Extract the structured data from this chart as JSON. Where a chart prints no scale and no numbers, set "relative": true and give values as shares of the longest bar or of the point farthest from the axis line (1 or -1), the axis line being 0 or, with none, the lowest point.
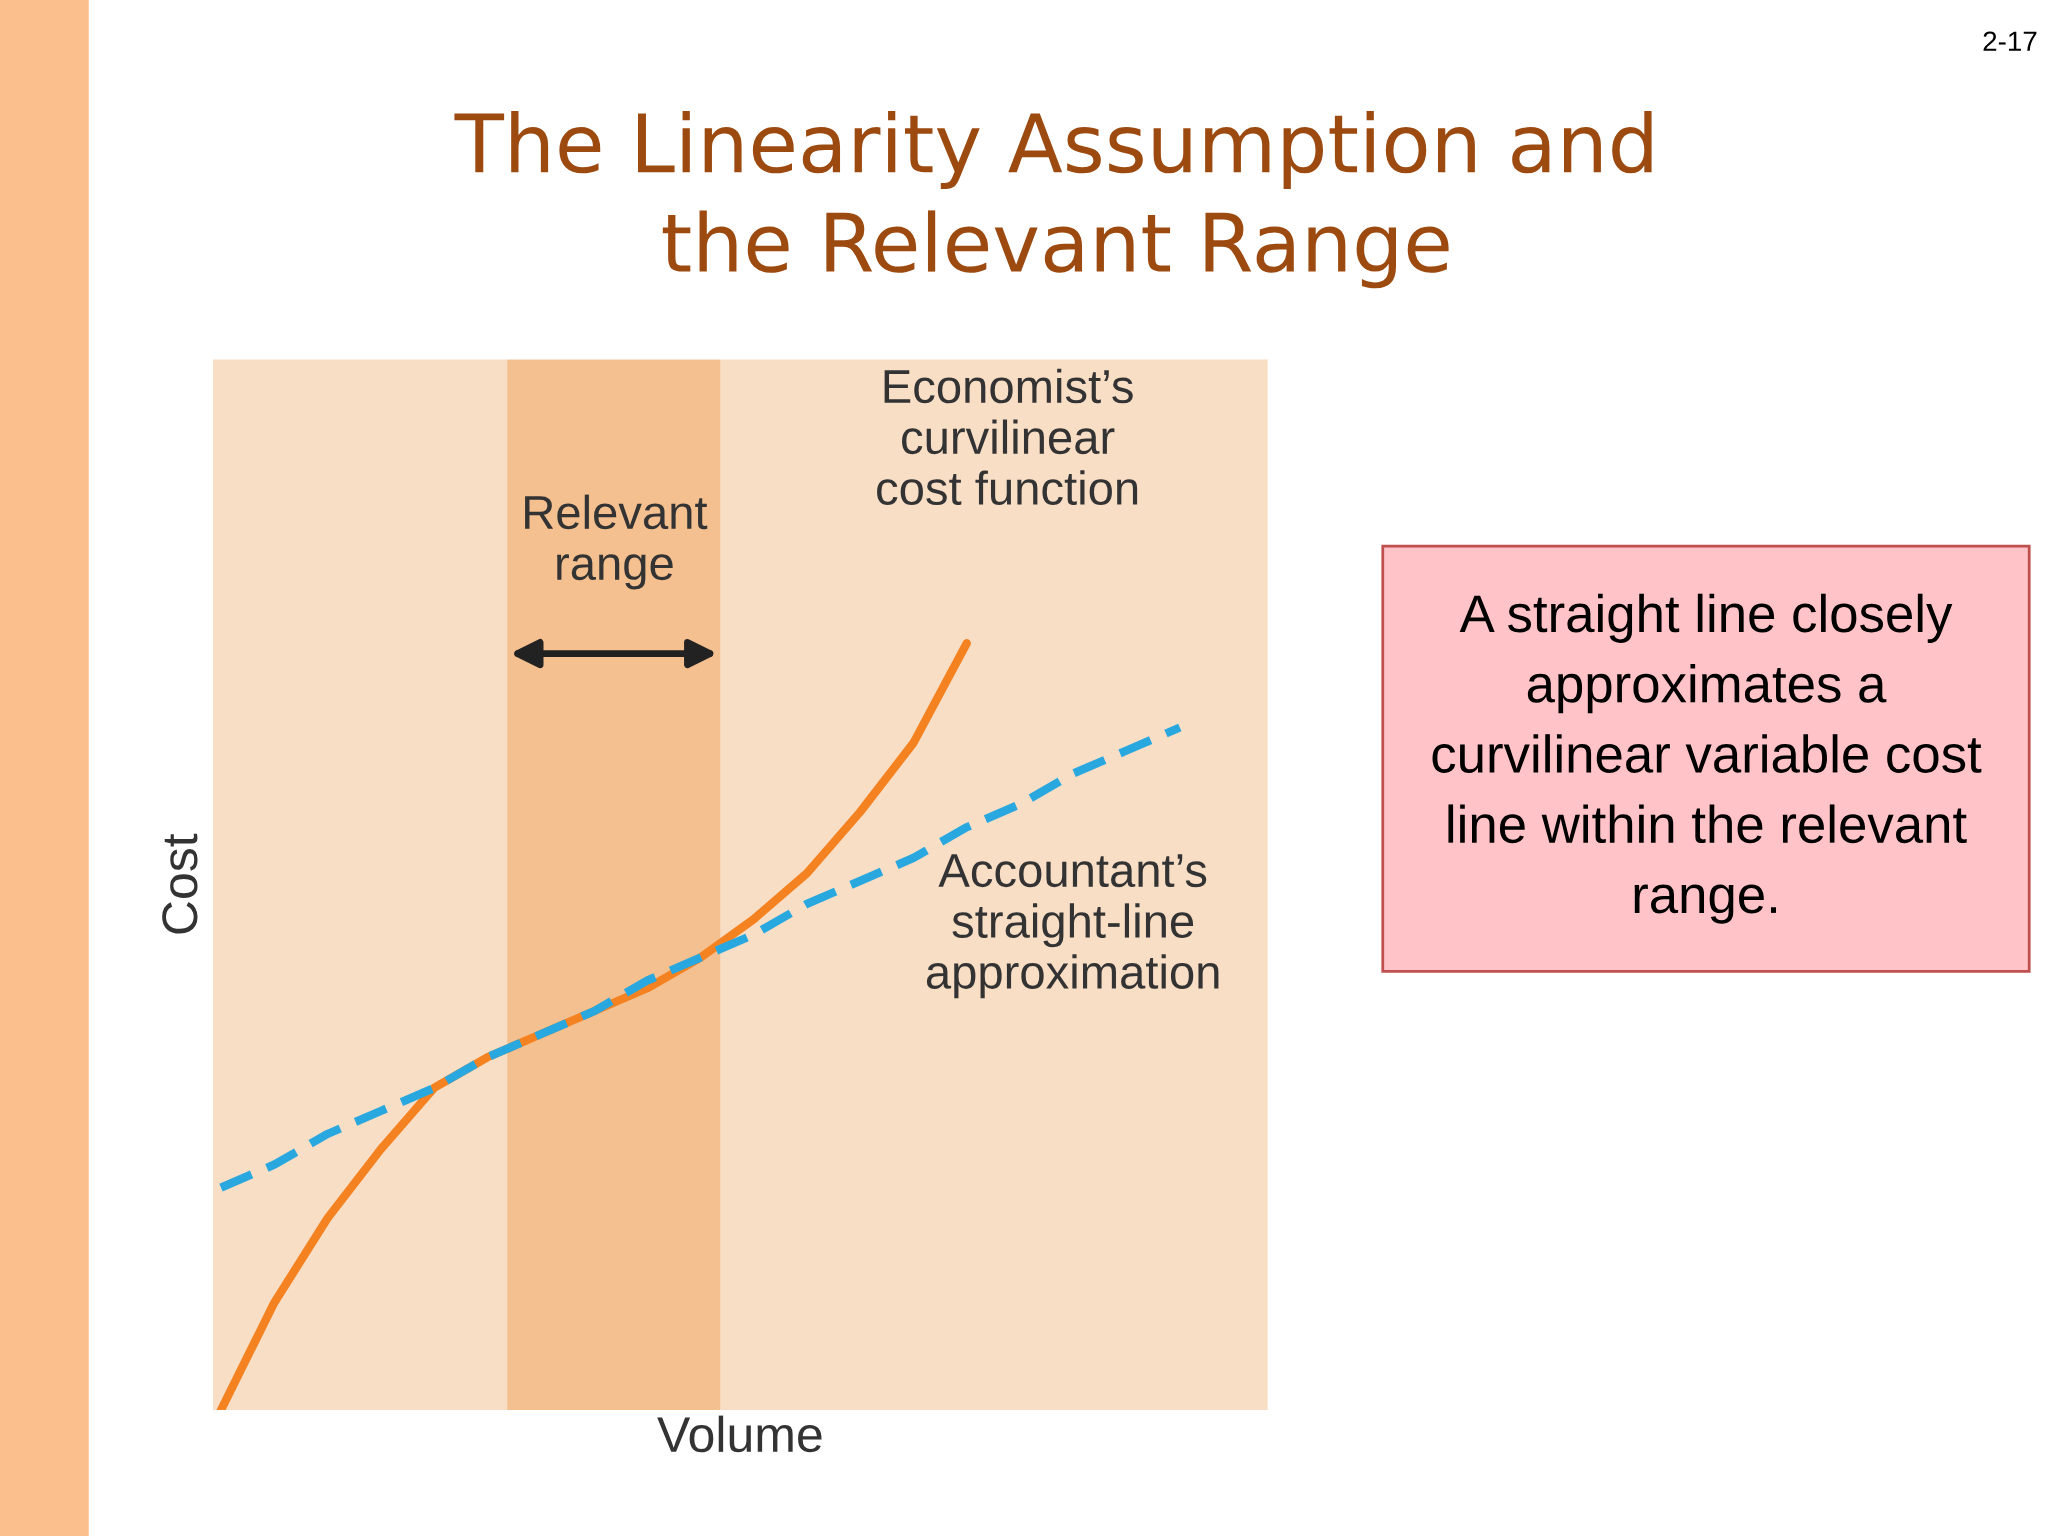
{
  "chart_data": {
    "type": "line",
    "relative": true,
    "title": "The Linearity Assumption and\nthe Relevant Range",
    "xlabel": "Volume",
    "ylabel": "Cost",
    "categories": [
      null,
      null,
      null,
      null,
      null,
      null,
      null,
      null,
      null,
      null,
      null,
      null,
      null,
      null,
      null,
      null,
      null,
      null,
      null
    ],
    "series": [
      {
        "color": "#f58220",
        "line_style": "solid",
        "values": [
          0,
          0.14,
          0.25,
          0.34,
          0.42,
          0.46,
          0.49,
          0.52,
          0.55,
          0.59,
          0.64,
          0.7,
          0.78,
          0.87,
          1.0,
          null,
          null,
          null,
          null
        ]
      },
      {
        "color": "#29a8e0",
        "line_style": "dashed",
        "values": [
          0.29,
          0.32,
          0.36,
          0.39,
          0.42,
          0.46,
          0.49,
          0.52,
          0.56,
          0.59,
          0.62,
          0.66,
          0.69,
          0.72,
          0.76,
          0.79,
          0.83,
          0.86,
          0.89
        ]
      }
    ],
    "annotations": [
      "Relevant\nrange",
      "Economist’s\ncurvilinear\ncost function",
      "Accountant’s\nstraight-line\napproximation",
      "A straight line closely approximates a curvilinear variable cost line within the relevant range.",
      "2-17"
    ],
    "legend": false,
    "marker": "none"
  }
}
